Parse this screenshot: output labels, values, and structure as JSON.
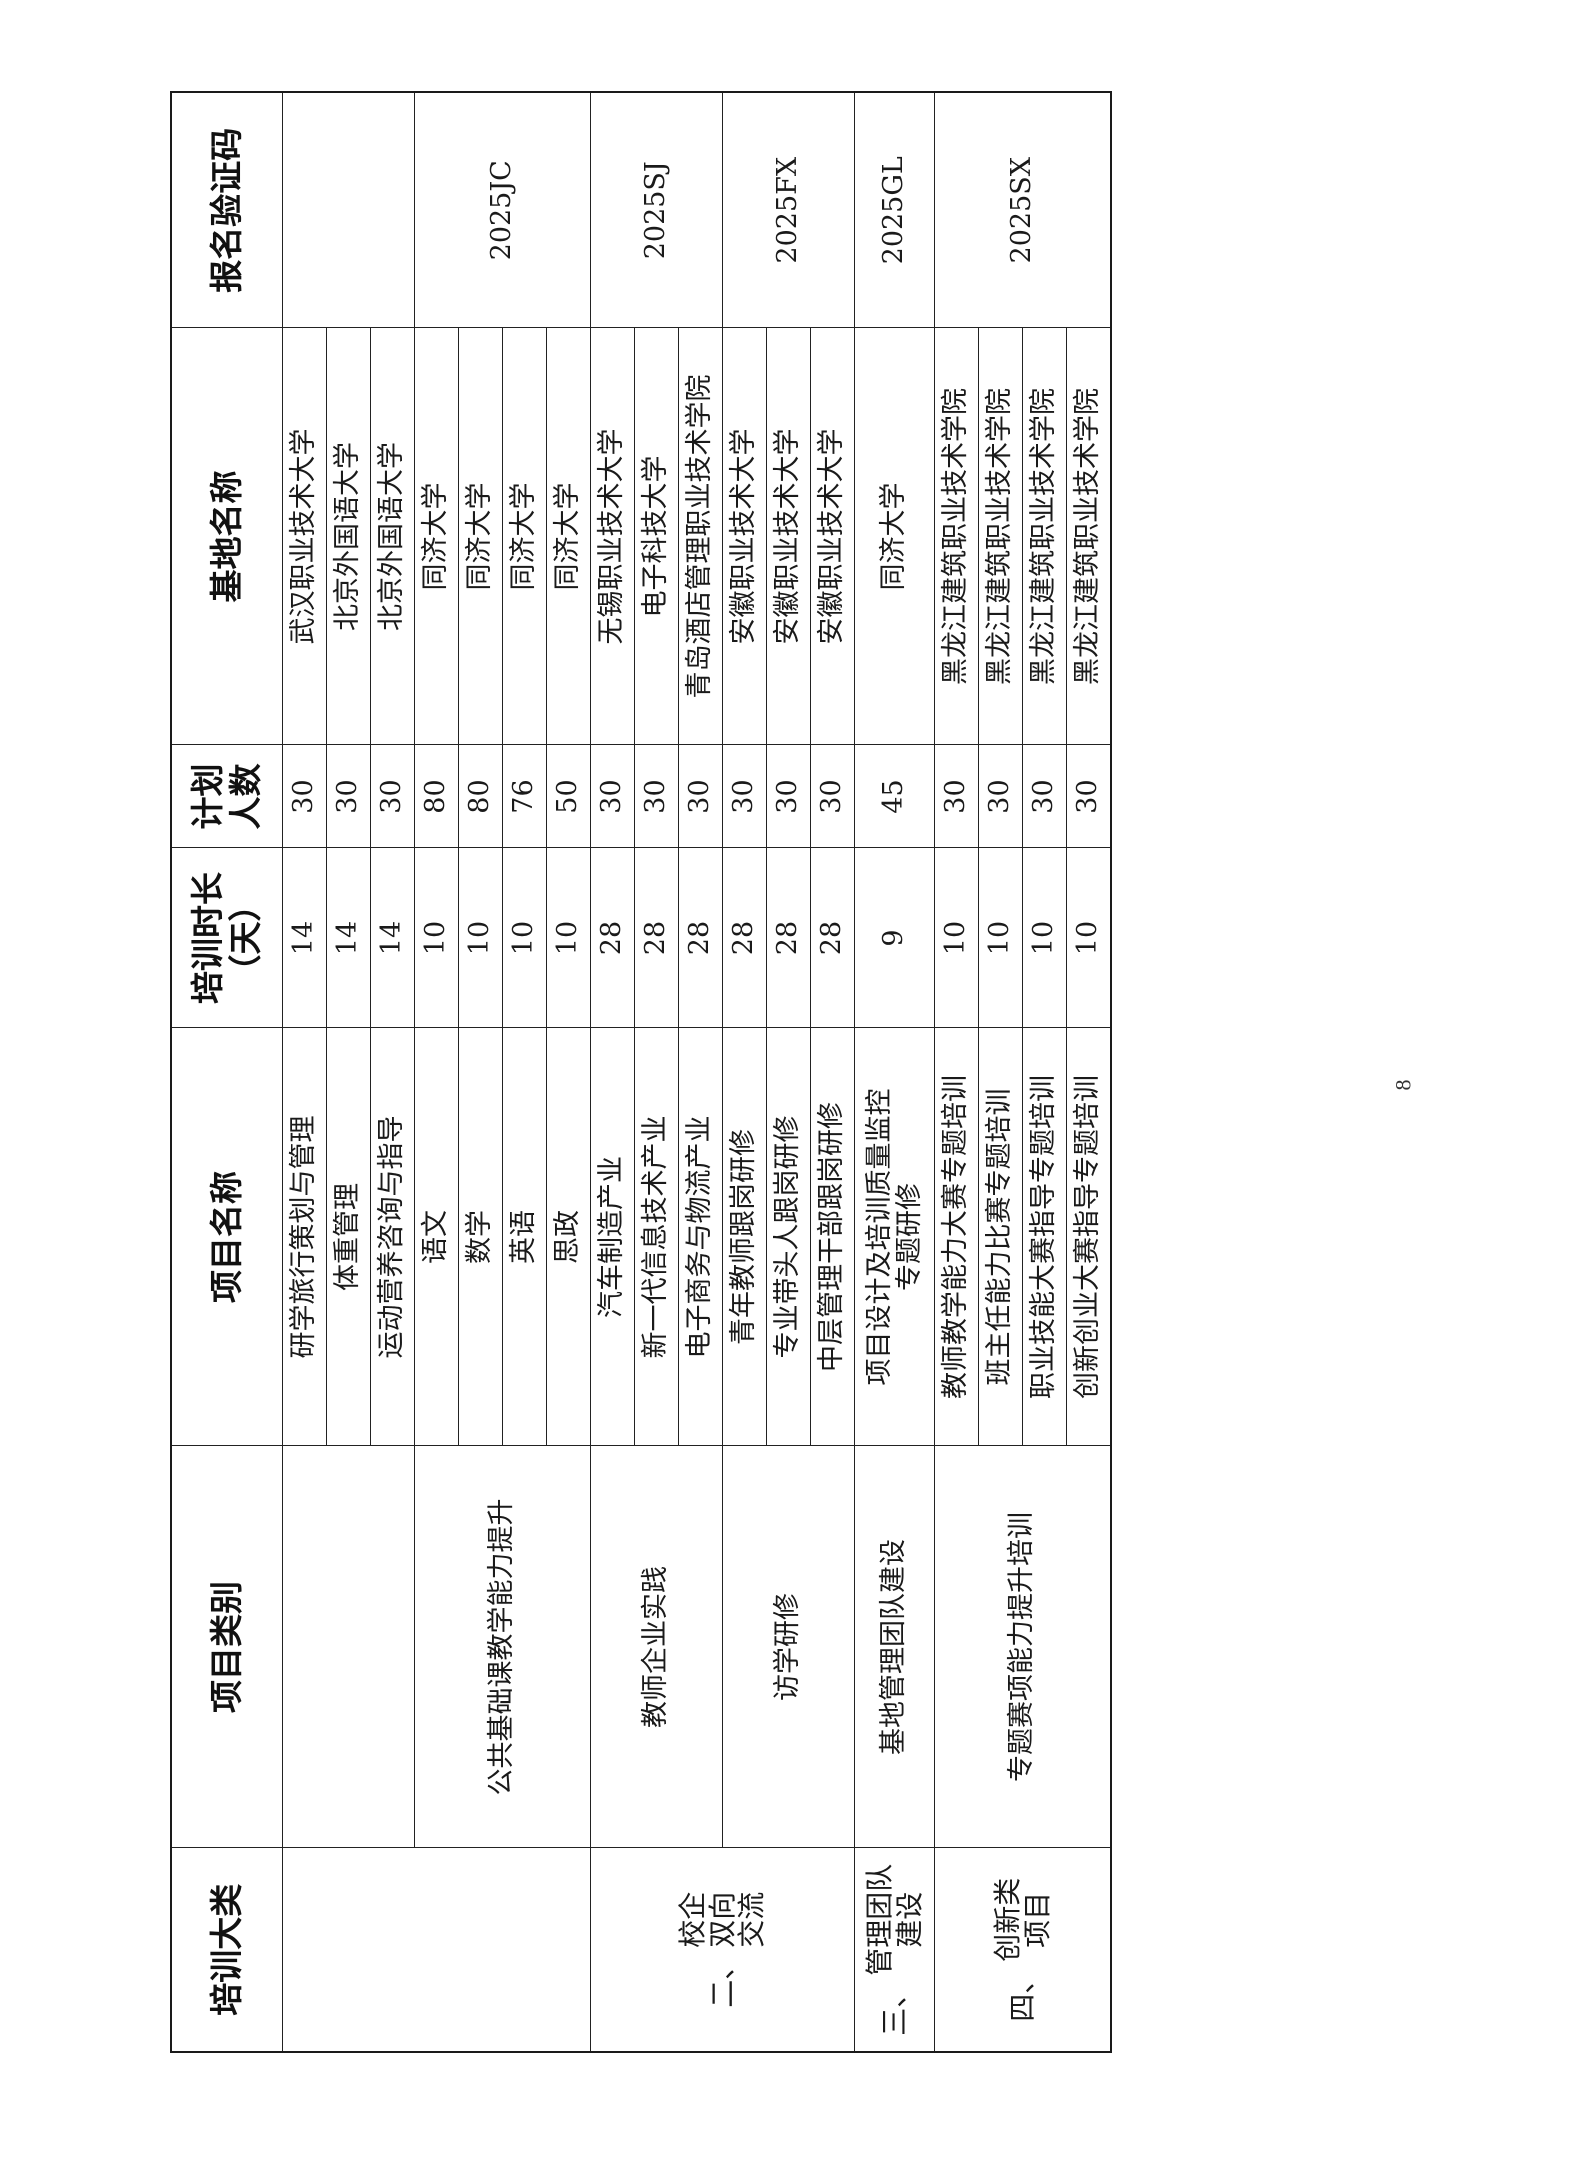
{
  "table": {
    "headers": [
      "培训大类",
      "项目类别",
      "项目名称",
      "培训时长\n（天）",
      "计划\n人数",
      "基地名称",
      "报名验证码"
    ],
    "categories": [
      {
        "prefix": "",
        "text": ""
      },
      {
        "prefix": "二、",
        "text": "校企\n双向\n交流"
      },
      {
        "prefix": "三、",
        "text": "管理团队\n建设"
      },
      {
        "prefix": "四、",
        "text": "创新类\n项目"
      }
    ],
    "types": [
      "",
      "公共基础课教学能力提升",
      "教师企业实践",
      "访学研修",
      "基地管理团队建设",
      "专题赛项能力提升培训"
    ],
    "codes": [
      "",
      "2025JC",
      "2025SJ",
      "2025FX",
      "2025GL",
      "2025SX"
    ],
    "rows": [
      {
        "name": "研学旅行策划与管理",
        "days": "14",
        "count": "30",
        "base": "武汉职业技术大学"
      },
      {
        "name": "体重管理",
        "days": "14",
        "count": "30",
        "base": "北京外国语大学"
      },
      {
        "name": "运动营养咨询与指导",
        "days": "14",
        "count": "30",
        "base": "北京外国语大学"
      },
      {
        "name": "语文",
        "days": "10",
        "count": "80",
        "base": "同济大学"
      },
      {
        "name": "数学",
        "days": "10",
        "count": "80",
        "base": "同济大学"
      },
      {
        "name": "英语",
        "days": "10",
        "count": "76",
        "base": "同济大学"
      },
      {
        "name": "思政",
        "days": "10",
        "count": "50",
        "base": "同济大学"
      },
      {
        "name": "汽车制造产业",
        "days": "28",
        "count": "30",
        "base": "无锡职业技术大学"
      },
      {
        "name": "新一代信息技术产业",
        "days": "28",
        "count": "30",
        "base": "电子科技大学"
      },
      {
        "name": "电子商务与物流产业",
        "days": "28",
        "count": "30",
        "base": "青岛酒店管理职业技术学院"
      },
      {
        "name": "青年教师跟岗研修",
        "days": "28",
        "count": "30",
        "base": "安徽职业技术大学"
      },
      {
        "name": "专业带头人跟岗研修",
        "days": "28",
        "count": "30",
        "base": "安徽职业技术大学"
      },
      {
        "name": "中层管理干部跟岗研修",
        "days": "28",
        "count": "30",
        "base": "安徽职业技术大学"
      },
      {
        "name": "项目设计及培训质量监控\n专题研修",
        "days": "9",
        "count": "45",
        "base": "同济大学"
      },
      {
        "name": "教师教学能力大赛专题培训",
        "days": "10",
        "count": "30",
        "base": "黑龙江建筑职业技术学院"
      },
      {
        "name": "班主任能力比赛专题培训",
        "days": "10",
        "count": "30",
        "base": "黑龙江建筑职业技术学院"
      },
      {
        "name": "职业技能大赛指导专题培训",
        "days": "10",
        "count": "30",
        "base": "黑龙江建筑职业技术学院"
      },
      {
        "name": "创新创业大赛指导专题培训",
        "days": "10",
        "count": "30",
        "base": "黑龙江建筑职业技术学院"
      }
    ]
  },
  "page_number": "8"
}
